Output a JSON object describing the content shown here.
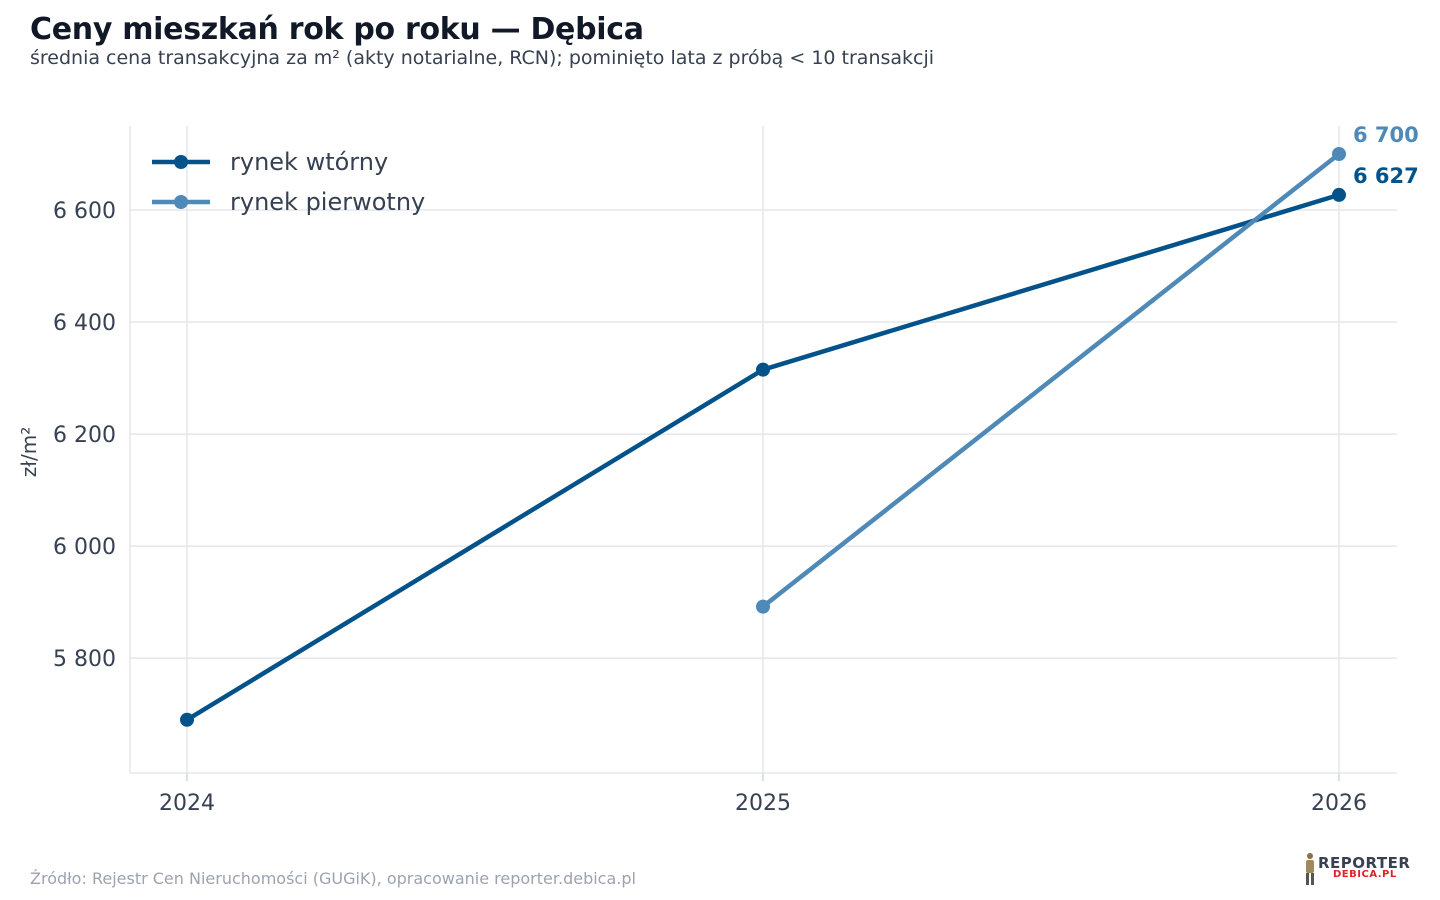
{
  "chart_data": {
    "type": "line",
    "title": "Ceny mieszkań rok po roku — Dębica",
    "subtitle": "średnia cena transakcyjna za m² (akty notarialne, RCN); pominięto lata z próbą < 10 transakcji",
    "xlabel": "",
    "ylabel": "zł/m²",
    "categories": [
      "2024",
      "2025",
      "2026"
    ],
    "y_ticks": [
      5800,
      6000,
      6200,
      6400,
      6600
    ],
    "y_tick_labels": [
      "5 800",
      "6 000",
      "6 200",
      "6 400",
      "6 600"
    ],
    "ylim": [
      5595,
      6750
    ],
    "grid": true,
    "legend_position": "top-left",
    "series": [
      {
        "name": "rynek wtórny",
        "color": "#03538a",
        "values": [
          5690,
          6315,
          6627
        ],
        "end_label": "6 627"
      },
      {
        "name": "rynek pierwotny",
        "color": "#4e89b8",
        "values": [
          null,
          5892,
          6700
        ],
        "end_label": "6 700"
      }
    ]
  },
  "footer": {
    "source": "Źródło: Rejestr Cen Nieruchomości (GUGiK), opracowanie reporter.debica.pl"
  },
  "logo": {
    "top": "REPORTER",
    "bottom": "DEBICA.PL"
  }
}
